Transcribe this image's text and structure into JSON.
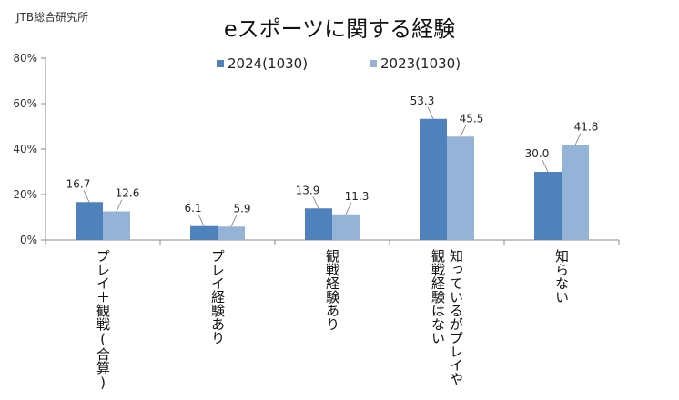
{
  "source_label": "JTB総合研究所",
  "chart_data": {
    "type": "bar",
    "title": "eスポーツに関する経験",
    "categories": [
      "プレイ＋観戦(合算)",
      "プレイ経験あり",
      "観戦経験あり",
      "知っているがプレイや観戦経験はない",
      "知らない"
    ],
    "category_lines": [
      [
        "プレイ＋観戦(合算)"
      ],
      [
        "プレイ経験あり"
      ],
      [
        "観戦経験あり"
      ],
      [
        "知っているがプレイや",
        "観戦経験はない"
      ],
      [
        "知らない"
      ]
    ],
    "series": [
      {
        "name": "2024(1030)",
        "values": [
          16.7,
          6.1,
          13.9,
          53.3,
          30.0
        ],
        "color": "#4f81bd"
      },
      {
        "name": "2023(1030)",
        "values": [
          12.6,
          5.9,
          11.3,
          45.5,
          41.8
        ],
        "color": "#95b3d7"
      }
    ],
    "value_labels": [
      [
        "16.7",
        "6.1",
        "13.9",
        "53.3",
        "30.0"
      ],
      [
        "12.6",
        "5.9",
        "11.3",
        "45.5",
        "41.8"
      ]
    ],
    "ylim": [
      0,
      80
    ],
    "yticks": [
      0,
      20,
      40,
      60,
      80
    ],
    "ytick_labels": [
      "0%",
      "20%",
      "40%",
      "60%",
      "80%"
    ],
    "grid": false,
    "legend_position": "top-center"
  }
}
